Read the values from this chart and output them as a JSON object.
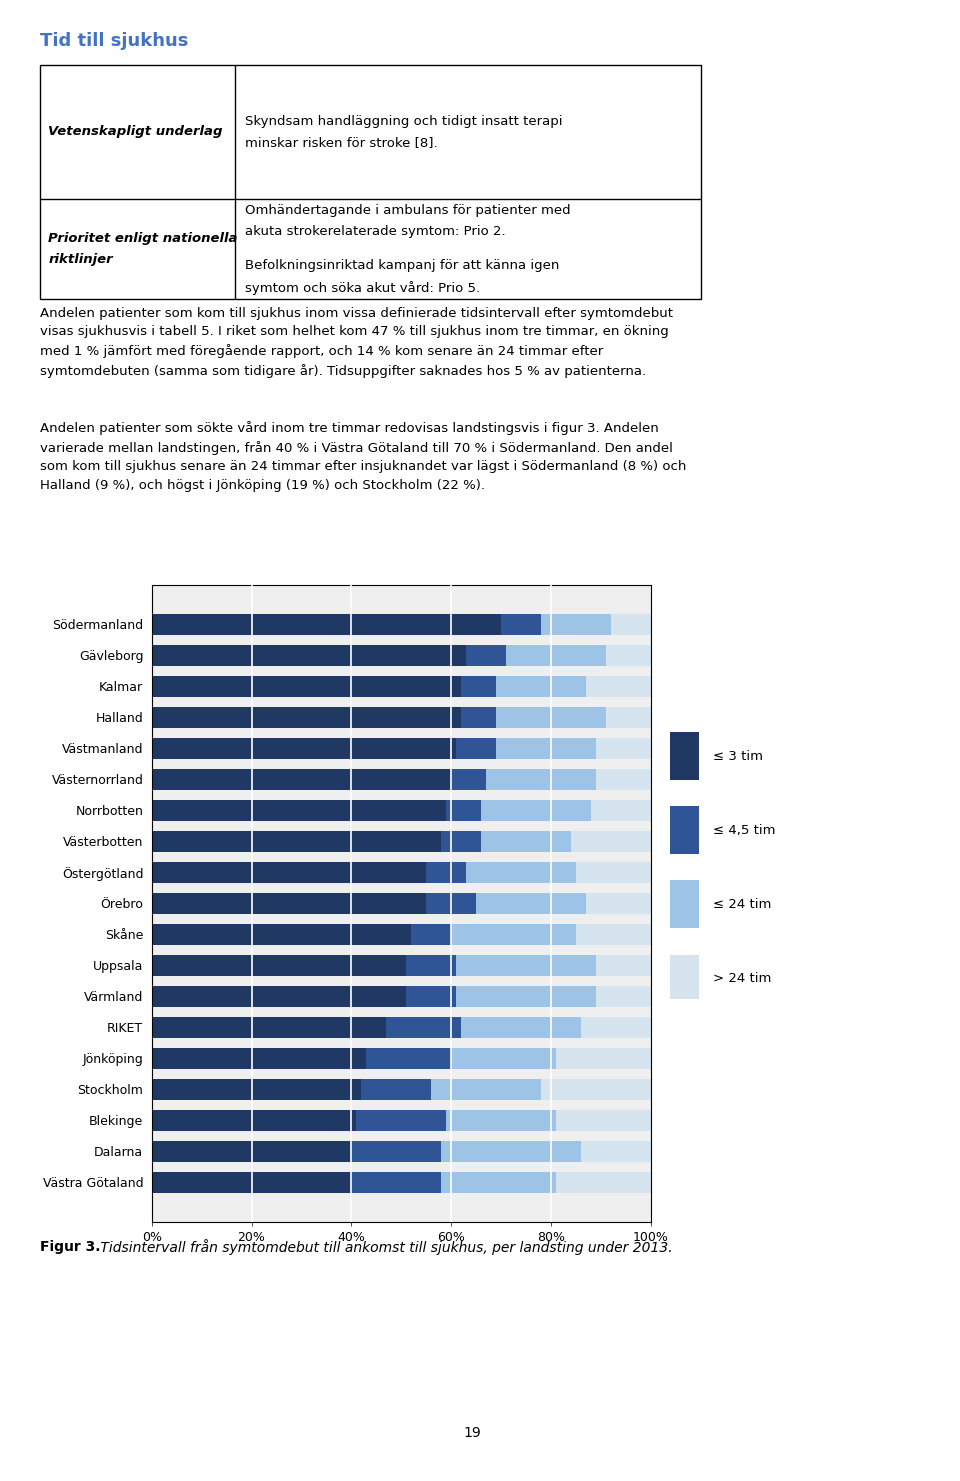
{
  "title": "Tid till sjukhus",
  "title_color": "#4472C4",
  "table": {
    "row1_col1": "Vetenskapligt underlag",
    "row1_col2": "Skyndsam handläggning och tidigt insatt terapi\nminskar risken för stroke [8].",
    "row2_col1": "Prioritet enligt nationella\nriktlinjer",
    "row2_col2a": "Omhändertagande i ambulans för patienter med\nakuta strokerelaterade symtom: Prio 2.",
    "row2_col2b": "Befolkningsinriktad kampanj för att känna igen\nsymtom och söka akut vård: Prio 5."
  },
  "paragraph1": "Andelen patienter som kom till sjukhus inom vissa definierade tidsintervall efter symtomdebut\nvisas sjukhusvis i tabell 5. I riket som helhet kom 47 % till sjukhus inom tre timmar, en ökning\nmed 1 % jämfört med föregående rapport, och 14 % kom senare än 24 timmar efter\nsymtomdebuten (samma som tidigare år). Tidsuppgifter saknades hos 5 % av patienterna.",
  "paragraph2_pre": "Andelen patienter som sökte vård inom tre timmar redovisas landstingsvis i ",
  "paragraph2_italic": "figur 3",
  "paragraph2_post": ". Andelen\nvarierade mellan landstingen, från 40 % i Västra Götaland till 70 % i Södermanland. Den andel\nsom kom till sjukhus senare än 24 timmar efter insjuknandet var lägst i Södermanland (8 %) och\nHalland (9 %), och högst i Jönköping (19 %) och Stockholm (22 %).",
  "fig_caption_bold": "Figur 3.",
  "fig_caption_italic": " Tidsintervall från symtomdebut till ankomst till sjukhus, per landsting under 2013.",
  "categories": [
    "Södermanland",
    "Gävleborg",
    "Kalmar",
    "Halland",
    "Västmanland",
    "Västernorrland",
    "Norrbotten",
    "Västerbotten",
    "Östergötland",
    "Örebro",
    "Skåne",
    "Uppsala",
    "Värmland",
    "RIKET",
    "Jönköping",
    "Stockholm",
    "Blekinge",
    "Dalarna",
    "Västra Götaland"
  ],
  "data": {
    "le3": [
      70,
      63,
      62,
      62,
      61,
      60,
      59,
      58,
      55,
      55,
      52,
      51,
      51,
      47,
      43,
      42,
      41,
      40,
      40
    ],
    "le4_5": [
      8,
      8,
      7,
      7,
      8,
      7,
      7,
      8,
      8,
      10,
      8,
      10,
      10,
      15,
      17,
      14,
      18,
      18,
      18
    ],
    "le24": [
      14,
      20,
      18,
      22,
      20,
      22,
      22,
      18,
      22,
      22,
      25,
      28,
      28,
      24,
      21,
      22,
      22,
      28,
      23
    ],
    "gt24": [
      8,
      9,
      13,
      9,
      11,
      11,
      12,
      16,
      15,
      13,
      15,
      11,
      11,
      14,
      19,
      22,
      19,
      14,
      19
    ]
  },
  "colors": {
    "le3": "#1F3864",
    "le4_5": "#2F5597",
    "le24": "#9DC3E6",
    "gt24": "#D6E4F0"
  },
  "legend_labels": [
    "≤ 3 tim",
    "≤ 4,5 tim",
    "≤ 24 tim",
    "> 24 tim"
  ],
  "legend_colors": [
    "#1F3864",
    "#2F5597",
    "#9DC3E6",
    "#D6E4F0"
  ],
  "xlabel_ticks": [
    "0%",
    "20%",
    "40%",
    "60%",
    "80%",
    "100%"
  ],
  "xlabel_values": [
    0,
    20,
    40,
    60,
    80,
    100
  ],
  "page_number": "19"
}
